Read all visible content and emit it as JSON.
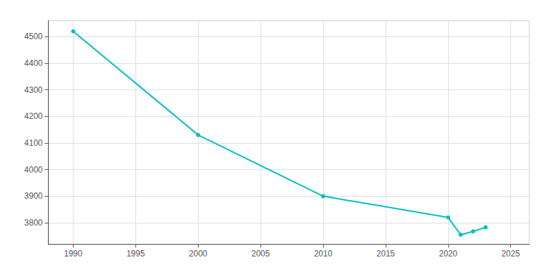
{
  "chart_data": {
    "type": "line",
    "x": [
      1990,
      2000,
      2010,
      2020,
      2021,
      2022,
      2023
    ],
    "values": [
      4520,
      4130,
      3900,
      3820,
      3755,
      3768,
      3783
    ],
    "color": "#00BFBF",
    "marker": "circle",
    "xlim": [
      1988,
      2026.5
    ],
    "ylim": [
      3720,
      4560
    ],
    "xticks": [
      1990,
      1995,
      2000,
      2005,
      2010,
      2015,
      2020,
      2025
    ],
    "yticks": [
      3800,
      3900,
      4000,
      4100,
      4200,
      4300,
      4400,
      4500
    ],
    "grid": true
  }
}
